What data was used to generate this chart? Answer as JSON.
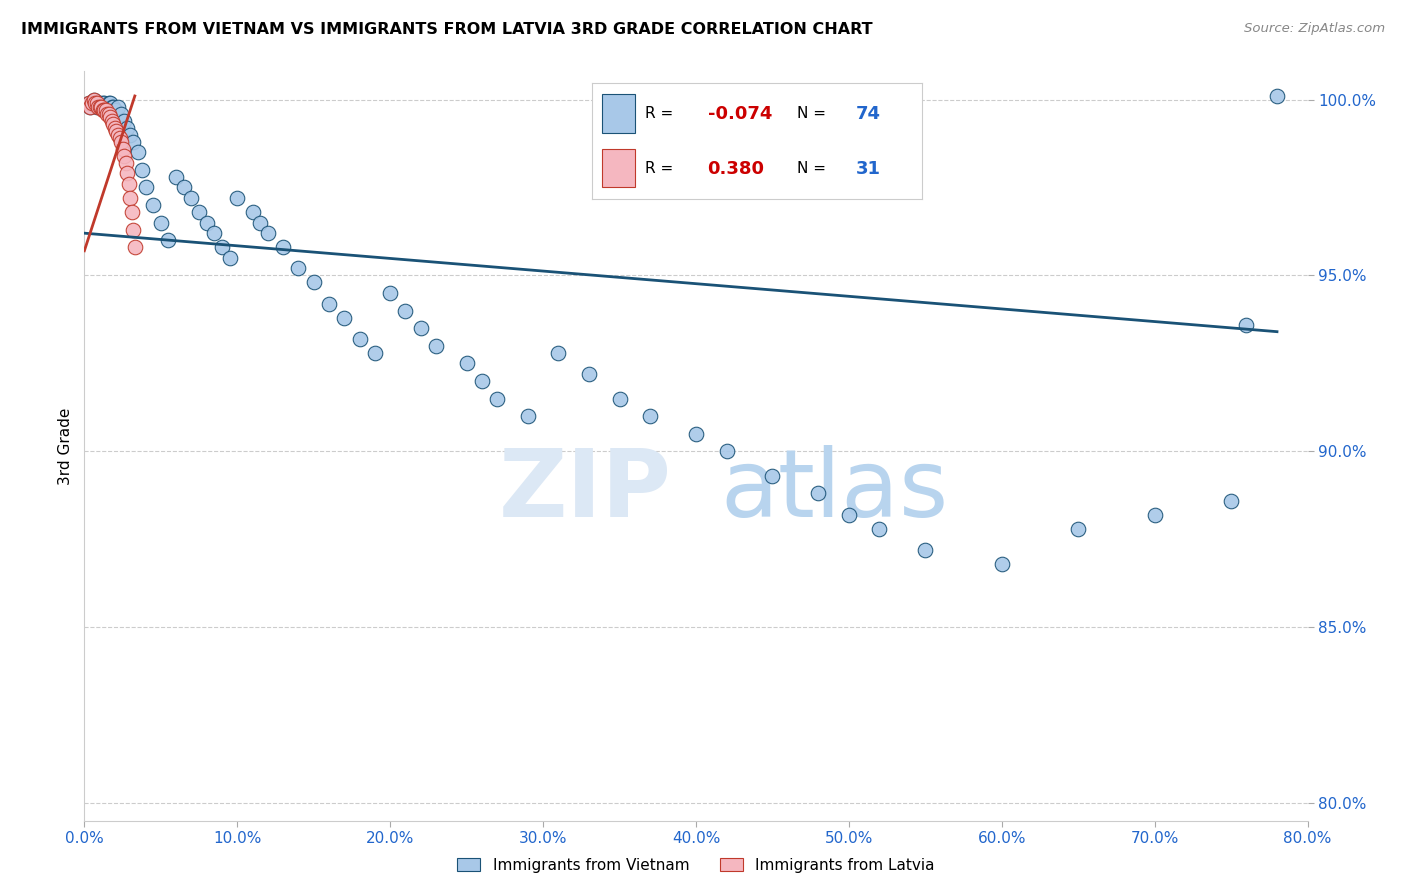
{
  "title": "IMMIGRANTS FROM VIETNAM VS IMMIGRANTS FROM LATVIA 3RD GRADE CORRELATION CHART",
  "source": "Source: ZipAtlas.com",
  "ylabel": "3rd Grade",
  "x_label_legend_left": "Immigrants from Vietnam",
  "x_label_legend_right": "Immigrants from Latvia",
  "xlim": [
    0.0,
    0.8
  ],
  "ylim": [
    0.795,
    1.008
  ],
  "x_ticks": [
    0.0,
    0.1,
    0.2,
    0.3,
    0.4,
    0.5,
    0.6,
    0.7,
    0.8
  ],
  "x_tick_labels": [
    "0.0%",
    "10.0%",
    "20.0%",
    "30.0%",
    "40.0%",
    "50.0%",
    "60.0%",
    "70.0%",
    "80.0%"
  ],
  "y_ticks": [
    0.8,
    0.85,
    0.9,
    0.95,
    1.0
  ],
  "y_tick_labels": [
    "80.0%",
    "85.0%",
    "90.0%",
    "95.0%",
    "100.0%"
  ],
  "legend_r_blue": "-0.074",
  "legend_n_blue": "74",
  "legend_r_pink": "0.380",
  "legend_n_pink": "31",
  "blue_color": "#a8c8e8",
  "blue_line_color": "#1a5276",
  "pink_color": "#f5b7c0",
  "pink_line_color": "#c0392b",
  "watermark_zip": "ZIP",
  "watermark_atlas": "atlas",
  "vietnam_x": [
    0.003,
    0.004,
    0.005,
    0.006,
    0.007,
    0.008,
    0.009,
    0.01,
    0.011,
    0.012,
    0.013,
    0.014,
    0.015,
    0.016,
    0.017,
    0.018,
    0.019,
    0.02,
    0.022,
    0.024,
    0.026,
    0.028,
    0.03,
    0.032,
    0.035,
    0.038,
    0.04,
    0.045,
    0.05,
    0.055,
    0.06,
    0.065,
    0.07,
    0.075,
    0.08,
    0.085,
    0.09,
    0.095,
    0.1,
    0.11,
    0.115,
    0.12,
    0.13,
    0.14,
    0.15,
    0.16,
    0.17,
    0.18,
    0.19,
    0.2,
    0.21,
    0.22,
    0.23,
    0.25,
    0.26,
    0.27,
    0.29,
    0.31,
    0.33,
    0.35,
    0.37,
    0.4,
    0.42,
    0.45,
    0.48,
    0.5,
    0.52,
    0.55,
    0.6,
    0.65,
    0.7,
    0.75,
    0.78,
    0.76
  ],
  "vietnam_y": [
    0.999,
    0.998,
    0.999,
    1.0,
    0.999,
    0.998,
    0.999,
    0.999,
    0.998,
    0.999,
    0.999,
    0.998,
    0.998,
    0.999,
    0.999,
    0.998,
    0.998,
    0.997,
    0.998,
    0.996,
    0.994,
    0.992,
    0.99,
    0.988,
    0.985,
    0.98,
    0.975,
    0.97,
    0.965,
    0.96,
    0.978,
    0.975,
    0.972,
    0.968,
    0.965,
    0.962,
    0.958,
    0.955,
    0.972,
    0.968,
    0.965,
    0.962,
    0.958,
    0.952,
    0.948,
    0.942,
    0.938,
    0.932,
    0.928,
    0.945,
    0.94,
    0.935,
    0.93,
    0.925,
    0.92,
    0.915,
    0.91,
    0.928,
    0.922,
    0.915,
    0.91,
    0.905,
    0.9,
    0.893,
    0.888,
    0.882,
    0.878,
    0.872,
    0.868,
    0.878,
    0.882,
    0.886,
    1.001,
    0.936
  ],
  "latvia_x": [
    0.003,
    0.004,
    0.005,
    0.006,
    0.007,
    0.008,
    0.009,
    0.01,
    0.011,
    0.012,
    0.013,
    0.014,
    0.015,
    0.016,
    0.017,
    0.018,
    0.019,
    0.02,
    0.021,
    0.022,
    0.023,
    0.024,
    0.025,
    0.026,
    0.027,
    0.028,
    0.029,
    0.03,
    0.031,
    0.032,
    0.033
  ],
  "latvia_y": [
    0.999,
    0.998,
    0.999,
    1.0,
    0.999,
    0.999,
    0.998,
    0.998,
    0.998,
    0.997,
    0.997,
    0.997,
    0.996,
    0.996,
    0.995,
    0.994,
    0.993,
    0.992,
    0.991,
    0.99,
    0.989,
    0.988,
    0.986,
    0.984,
    0.982,
    0.979,
    0.976,
    0.972,
    0.968,
    0.963,
    0.958
  ],
  "blue_line_x": [
    0.0,
    0.78
  ],
  "blue_line_y": [
    0.962,
    0.934
  ],
  "pink_line_x": [
    0.0,
    0.033
  ],
  "pink_line_y": [
    0.957,
    1.001
  ]
}
